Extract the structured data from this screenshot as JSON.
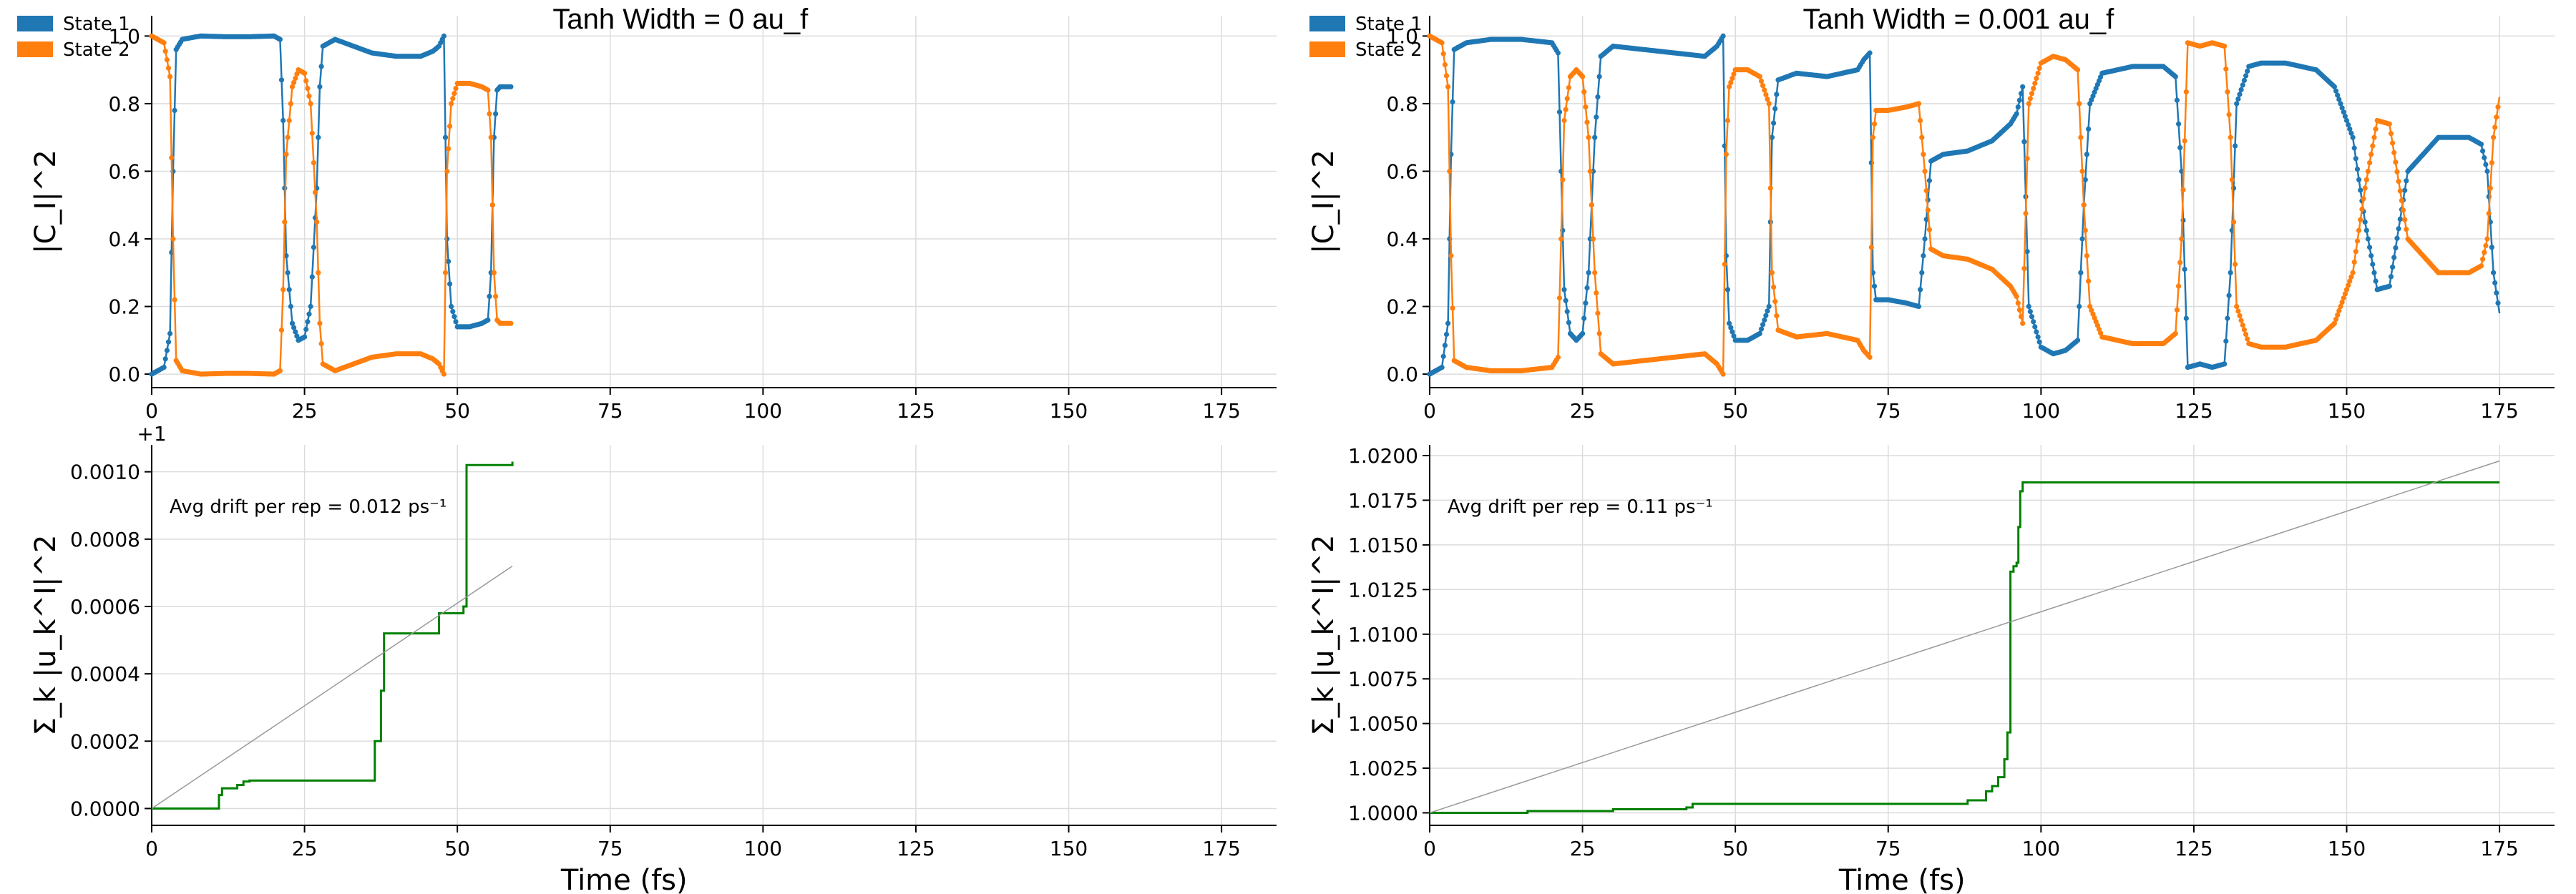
{
  "chart_data": [
    {
      "type": "line",
      "title": "Tanh Width = 0 au_f",
      "xlabel": "",
      "ylabel": "|C_I|^2",
      "xlim": [
        0,
        184
      ],
      "ylim": [
        -0.04,
        1.06
      ],
      "xticks": [
        0,
        25,
        50,
        75,
        100,
        125,
        150,
        175
      ],
      "yticks": [
        0.0,
        0.2,
        0.4,
        0.6,
        0.8,
        1.0
      ],
      "grid": true,
      "legend": "top-left",
      "series": [
        {
          "name": "State 1",
          "color": "#1f77b4",
          "marker": "dot",
          "x": [
            0,
            2,
            3,
            3.5,
            4,
            5,
            8,
            12,
            16,
            20,
            21,
            21.5,
            22,
            23,
            24,
            25,
            26,
            27,
            27.5,
            28,
            30,
            33,
            36,
            40,
            44,
            46,
            47,
            47.8,
            48.3,
            49,
            50,
            52,
            54,
            55,
            55.5,
            56,
            56.5,
            57,
            58,
            59
          ],
          "y": [
            0.0,
            0.02,
            0.12,
            0.6,
            0.96,
            0.99,
            1.0,
            0.998,
            0.998,
            1.0,
            0.99,
            0.75,
            0.35,
            0.15,
            0.1,
            0.11,
            0.2,
            0.55,
            0.85,
            0.97,
            0.99,
            0.97,
            0.95,
            0.94,
            0.94,
            0.955,
            0.97,
            1.0,
            0.4,
            0.2,
            0.14,
            0.14,
            0.15,
            0.16,
            0.3,
            0.7,
            0.84,
            0.85,
            0.85,
            0.85
          ]
        },
        {
          "name": "State 2",
          "color": "#ff7f0e",
          "marker": "dot",
          "x": [
            0,
            2,
            3,
            3.5,
            4,
            5,
            8,
            12,
            16,
            20,
            21,
            21.5,
            22,
            23,
            24,
            25,
            26,
            27,
            27.5,
            28,
            30,
            33,
            36,
            40,
            44,
            46,
            47,
            47.8,
            48.3,
            49,
            50,
            52,
            54,
            55,
            55.5,
            56,
            56.5,
            57,
            58,
            59
          ],
          "y": [
            1.0,
            0.98,
            0.88,
            0.4,
            0.04,
            0.01,
            0.0,
            0.002,
            0.002,
            0.0,
            0.01,
            0.25,
            0.65,
            0.85,
            0.9,
            0.89,
            0.8,
            0.45,
            0.15,
            0.03,
            0.01,
            0.03,
            0.05,
            0.06,
            0.06,
            0.045,
            0.03,
            0.0,
            0.6,
            0.8,
            0.86,
            0.86,
            0.85,
            0.84,
            0.7,
            0.3,
            0.16,
            0.15,
            0.15,
            0.15
          ]
        }
      ]
    },
    {
      "type": "line",
      "title": "Tanh Width = 0.001 au_f",
      "xlabel": "",
      "ylabel": "|C_I|^2",
      "xlim": [
        0,
        184
      ],
      "ylim": [
        -0.04,
        1.06
      ],
      "xticks": [
        0,
        25,
        50,
        75,
        100,
        125,
        150,
        175
      ],
      "yticks": [
        0.0,
        0.2,
        0.4,
        0.6,
        0.8,
        1.0
      ],
      "grid": true,
      "legend": "top-left",
      "series": [
        {
          "name": "State 1",
          "color": "#1f77b4",
          "marker": "dot",
          "x": [
            0,
            2,
            3,
            3.5,
            4,
            6,
            10,
            15,
            20,
            21,
            21.5,
            22,
            23,
            24,
            25,
            26,
            27,
            28,
            30,
            35,
            40,
            45,
            47,
            48,
            48.5,
            49,
            50,
            52,
            54,
            55.5,
            56,
            57,
            60,
            65,
            70,
            71,
            72,
            72.5,
            73,
            75,
            78,
            80,
            81,
            82,
            84,
            88,
            92,
            95,
            96,
            97,
            98,
            100,
            102,
            104,
            106,
            107,
            108,
            110,
            115,
            120,
            122,
            123,
            124,
            126,
            128,
            130,
            131,
            132,
            134,
            136,
            140,
            145,
            148,
            151,
            153,
            155,
            157,
            160,
            165,
            170,
            172,
            173,
            174,
            175
          ],
          "y": [
            0.0,
            0.02,
            0.15,
            0.65,
            0.96,
            0.98,
            0.99,
            0.99,
            0.98,
            0.95,
            0.6,
            0.25,
            0.12,
            0.1,
            0.12,
            0.3,
            0.7,
            0.94,
            0.97,
            0.96,
            0.95,
            0.94,
            0.97,
            1.0,
            0.35,
            0.15,
            0.1,
            0.1,
            0.12,
            0.2,
            0.7,
            0.87,
            0.89,
            0.88,
            0.9,
            0.93,
            0.95,
            0.3,
            0.22,
            0.22,
            0.21,
            0.2,
            0.4,
            0.63,
            0.65,
            0.66,
            0.69,
            0.74,
            0.77,
            0.85,
            0.2,
            0.08,
            0.06,
            0.07,
            0.1,
            0.5,
            0.8,
            0.89,
            0.91,
            0.91,
            0.88,
            0.6,
            0.02,
            0.03,
            0.02,
            0.03,
            0.3,
            0.8,
            0.91,
            0.92,
            0.92,
            0.9,
            0.85,
            0.7,
            0.45,
            0.25,
            0.26,
            0.6,
            0.7,
            0.7,
            0.68,
            0.6,
            0.3,
            0.18
          ]
        },
        {
          "name": "State 2",
          "color": "#ff7f0e",
          "marker": "dot",
          "x": [
            0,
            2,
            3,
            3.5,
            4,
            6,
            10,
            15,
            20,
            21,
            21.5,
            22,
            23,
            24,
            25,
            26,
            27,
            28,
            30,
            35,
            40,
            45,
            47,
            48,
            48.5,
            49,
            50,
            52,
            54,
            55.5,
            56,
            57,
            60,
            65,
            70,
            71,
            72,
            72.5,
            73,
            75,
            78,
            80,
            81,
            82,
            84,
            88,
            92,
            95,
            96,
            97,
            98,
            100,
            102,
            104,
            106,
            107,
            108,
            110,
            115,
            120,
            122,
            123,
            124,
            126,
            128,
            130,
            131,
            132,
            134,
            136,
            140,
            145,
            148,
            151,
            153,
            155,
            157,
            160,
            165,
            170,
            172,
            173,
            174,
            175
          ],
          "y": [
            1.0,
            0.98,
            0.85,
            0.35,
            0.04,
            0.02,
            0.01,
            0.01,
            0.02,
            0.05,
            0.4,
            0.75,
            0.88,
            0.9,
            0.88,
            0.7,
            0.3,
            0.06,
            0.03,
            0.04,
            0.05,
            0.06,
            0.03,
            0.0,
            0.65,
            0.85,
            0.9,
            0.9,
            0.88,
            0.8,
            0.3,
            0.13,
            0.11,
            0.12,
            0.1,
            0.07,
            0.05,
            0.7,
            0.78,
            0.78,
            0.79,
            0.8,
            0.6,
            0.37,
            0.35,
            0.34,
            0.31,
            0.26,
            0.23,
            0.15,
            0.8,
            0.92,
            0.94,
            0.93,
            0.9,
            0.5,
            0.2,
            0.11,
            0.09,
            0.09,
            0.12,
            0.4,
            0.98,
            0.97,
            0.98,
            0.97,
            0.7,
            0.2,
            0.09,
            0.08,
            0.08,
            0.1,
            0.15,
            0.3,
            0.55,
            0.75,
            0.74,
            0.4,
            0.3,
            0.3,
            0.32,
            0.4,
            0.7,
            0.82
          ]
        }
      ]
    },
    {
      "type": "line",
      "title": "",
      "xlabel": "Time (fs)",
      "ylabel": "Σ_k |u_k^I|^2",
      "offset_label": "+1",
      "annotation": "Avg drift per rep = 0.012 ps⁻¹",
      "xlim": [
        0,
        184
      ],
      "ylim": [
        -5e-05,
        0.00108
      ],
      "xticks": [
        0,
        25,
        50,
        75,
        100,
        125,
        150,
        175
      ],
      "yticks": [
        0.0,
        0.0002,
        0.0004,
        0.0006,
        0.0008,
        0.001
      ],
      "ytick_labels": [
        "0.0000",
        "0.0002",
        "0.0004",
        "0.0006",
        "0.0008",
        "0.0010"
      ],
      "grid": true,
      "series": [
        {
          "color": "#008000",
          "step": true,
          "x": [
            0,
            10.5,
            11,
            11.5,
            13,
            14,
            15,
            16,
            35.5,
            36.5,
            37,
            37.5,
            38,
            46,
            47,
            51,
            51.5,
            59
          ],
          "y": [
            0.0,
            0.0,
            4e-05,
            6e-05,
            6e-05,
            7e-05,
            8e-05,
            8.3e-05,
            8.3e-05,
            0.0002,
            0.0002,
            0.00035,
            0.00052,
            0.00052,
            0.00058,
            0.0006,
            0.00102,
            0.00103
          ]
        },
        {
          "color": "#999999",
          "linewidth": "thin",
          "x": [
            0,
            59
          ],
          "y": [
            0.0,
            0.00072
          ]
        }
      ]
    },
    {
      "type": "line",
      "title": "",
      "xlabel": "Time (fs)",
      "ylabel": "Σ_k |u_k^I|^2",
      "annotation": "Avg drift per rep = 0.11 ps⁻¹",
      "xlim": [
        0,
        184
      ],
      "ylim": [
        0.9993,
        1.0206
      ],
      "xticks": [
        0,
        25,
        50,
        75,
        100,
        125,
        150,
        175
      ],
      "yticks": [
        1.0,
        1.0025,
        1.005,
        1.0075,
        1.01,
        1.0125,
        1.015,
        1.0175,
        1.02
      ],
      "ytick_labels": [
        "1.0000",
        "1.0025",
        "1.0050",
        "1.0075",
        "1.0100",
        "1.0125",
        "1.0150",
        "1.0175",
        "1.0200"
      ],
      "grid": true,
      "series": [
        {
          "color": "#008000",
          "step": true,
          "x": [
            0,
            15,
            16,
            30,
            40,
            42,
            43,
            86,
            88,
            91,
            92,
            93,
            94,
            94.5,
            95,
            95.5,
            96,
            96.3,
            96.6,
            97,
            175
          ],
          "y": [
            1.0,
            1.0,
            1.0001,
            1.0002,
            1.0002,
            1.0003,
            1.0005,
            1.0005,
            1.0007,
            1.0012,
            1.0015,
            1.002,
            1.003,
            1.0045,
            1.0135,
            1.0138,
            1.014,
            1.016,
            1.018,
            1.0185,
            1.0185
          ]
        },
        {
          "color": "#999999",
          "linewidth": "thin",
          "x": [
            0,
            175
          ],
          "y": [
            1.0,
            1.0197
          ]
        }
      ]
    }
  ]
}
